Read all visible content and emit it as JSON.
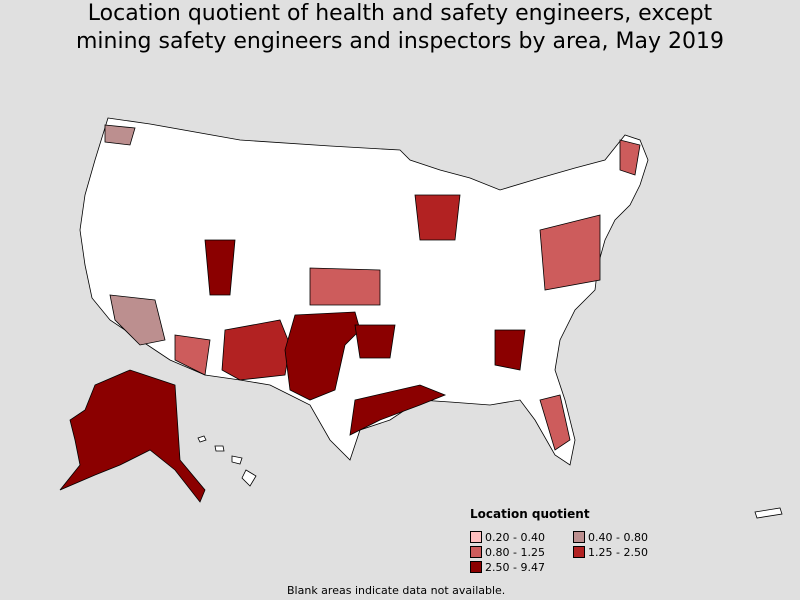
{
  "title_lines": [
    "Location quotient of health and safety engineers, except",
    "mining safety engineers and inspectors by area, May 2019"
  ],
  "legend": {
    "title": "Location quotient",
    "items": [
      {
        "label": "0.20 - 0.40",
        "color": "#ffc0c0"
      },
      {
        "label": "0.40 - 0.80",
        "color": "#bc8f8f"
      },
      {
        "label": "0.80 - 1.25",
        "color": "#cd5c5c"
      },
      {
        "label": "1.25 - 2.50",
        "color": "#b22222"
      },
      {
        "label": "2.50 - 9.47",
        "color": "#8b0000"
      }
    ]
  },
  "note": "Blank areas indicate data not available.",
  "colors": {
    "background": "#e0e0e0",
    "blank": "#ffffff",
    "border": "#000000"
  }
}
